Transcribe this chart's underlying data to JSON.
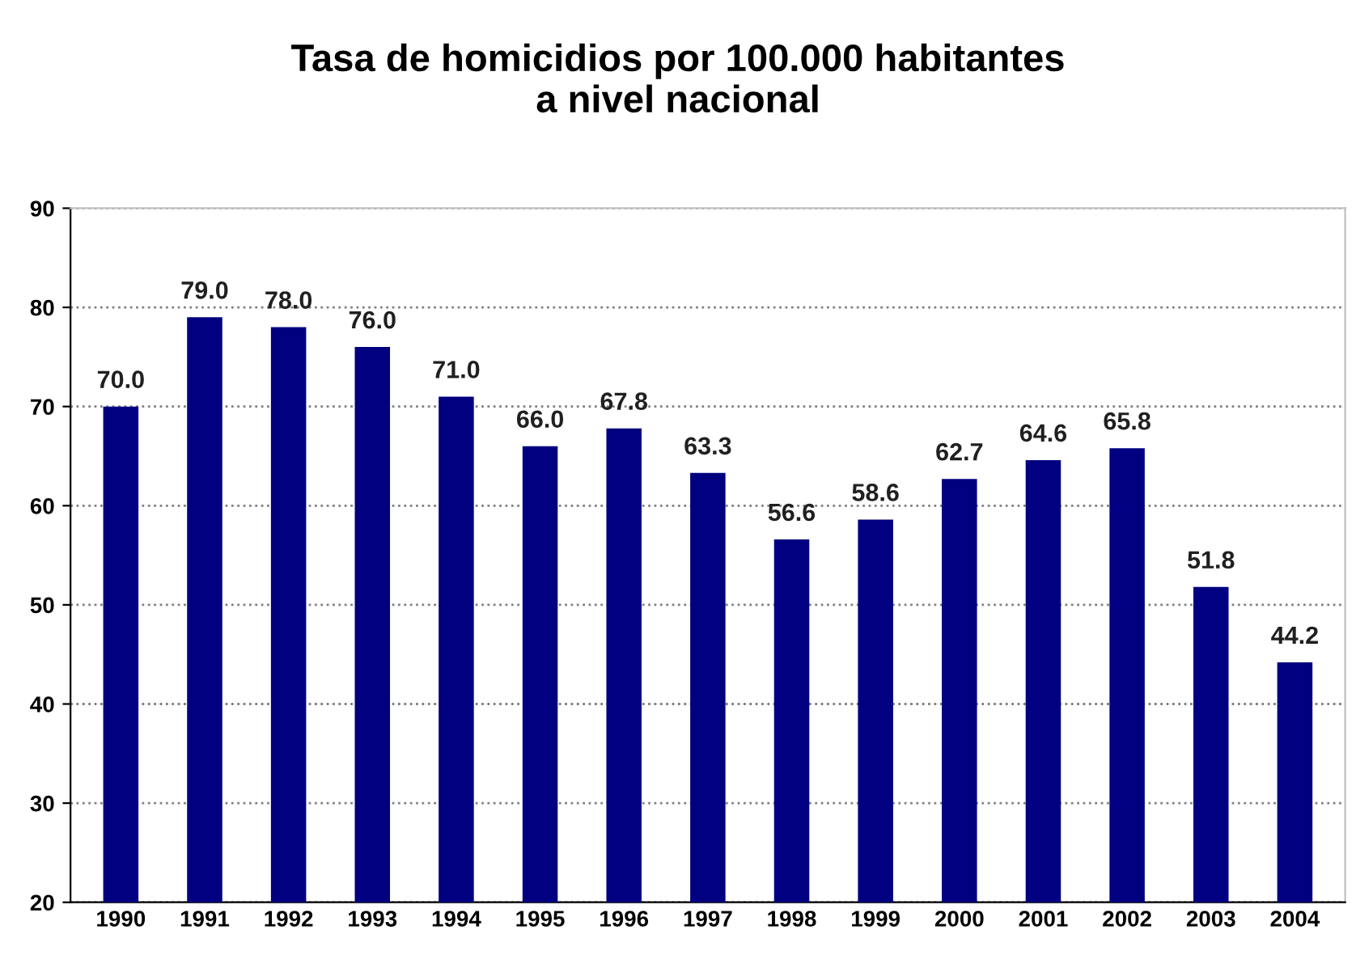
{
  "chart_data": {
    "type": "bar",
    "title": "Tasa de homicidios por 100.000 habitantes\na nivel nacional",
    "categories": [
      "1990",
      "1991",
      "1992",
      "1993",
      "1994",
      "1995",
      "1996",
      "1997",
      "1998",
      "1999",
      "2000",
      "2001",
      "2002",
      "2003",
      "2004"
    ],
    "values": [
      70.0,
      79.0,
      78.0,
      76.0,
      71.0,
      66.0,
      67.8,
      63.3,
      56.6,
      58.6,
      62.7,
      64.6,
      65.8,
      51.8,
      44.2
    ],
    "value_labels": [
      "70.0",
      "79.0",
      "78.0",
      "76.0",
      "71.0",
      "66.0",
      "67.8",
      "63.3",
      "56.6",
      "58.6",
      "62.7",
      "64.6",
      "65.8",
      "51.8",
      "44.2"
    ],
    "color": "#000080",
    "ylim": [
      20,
      90
    ],
    "yticks": [
      20,
      30,
      40,
      50,
      60,
      70,
      80,
      90
    ],
    "grid": "y",
    "legend": false
  }
}
